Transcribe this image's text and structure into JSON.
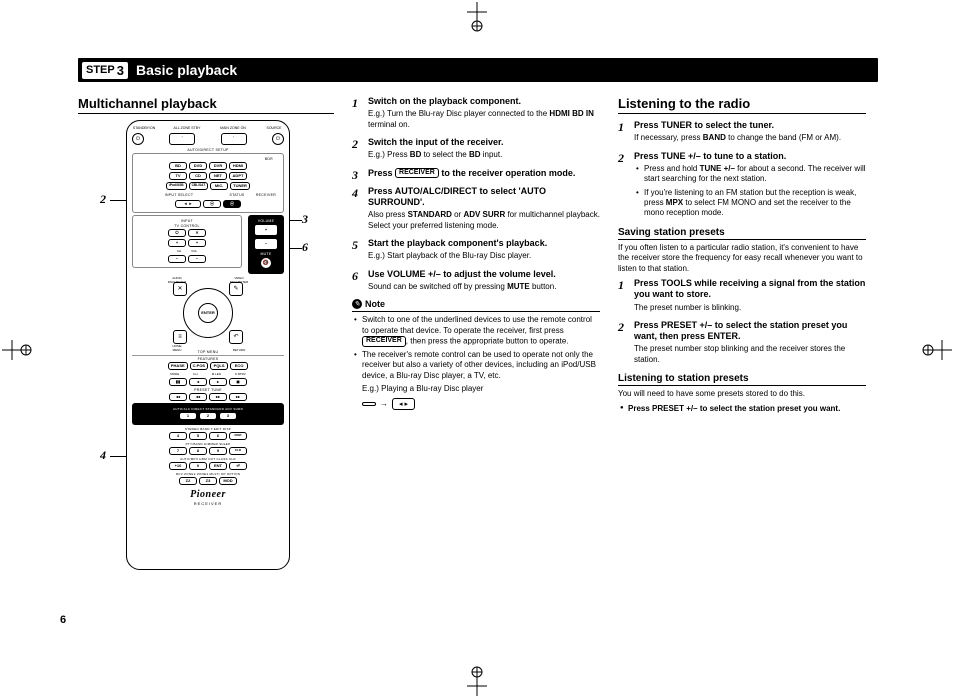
{
  "page_number": "6",
  "banner": {
    "step_word": "STEP",
    "step_num": "3",
    "title": "Basic playback"
  },
  "left": {
    "heading": "Multichannel playback",
    "callouts": {
      "c2": "2",
      "c3": "3",
      "c4": "4",
      "c6": "6"
    },
    "remote": {
      "top_labels": {
        "l1": "STANDBY/ON",
        "l2": "ALL ZONE STBY",
        "l3": "MAIN ZONE ON",
        "l4": "SOURCE"
      },
      "power_left": "⏻",
      "power_right": "⏻",
      "setup": "AUTO/DIRECT  SETUP",
      "input_grid": [
        [
          "BD",
          "DVD",
          "DVR",
          "HDMI"
        ],
        [
          "TV",
          "CD",
          "NET",
          "ADPT"
        ],
        [
          "iPod/USB",
          "CBL/SAT",
          "MIC.",
          "TUNER"
        ]
      ],
      "bdr": "BDR",
      "input_select": "INPUT SELECT",
      "status": "STATUS",
      "receiver": "RECEIVER",
      "left_arrows": "◄ ►",
      "tv_ctrl": "TV CONTROL",
      "input": "INPUT",
      "volume_lbl": "VOLUME",
      "tv_buttons": [
        "⏻",
        "✕",
        "CH",
        "VOL",
        "+",
        "−",
        "+",
        "−"
      ],
      "vol": "VOLUME",
      "vol_plus": "+",
      "vol_minus": "−",
      "mute": "MUTE",
      "mute_icon": "🔇",
      "audio_param": "AUDIO\nPARAMETER",
      "video_param": "VIDEO\nPARAMETER",
      "enter": "ENTER",
      "home": "HOME\nMENU",
      "return": "RETURN",
      "top_menu": "TOP MENU",
      "nav_x": "✕",
      "nav_pen": "✎",
      "nav_list": "≡",
      "nav_back": "↶",
      "features": "FEATURES",
      "feat_row": [
        "PHASE",
        "C.POS",
        "PQLS",
        "ECO"
      ],
      "feat_sub": [
        "MODE",
        "F.H",
        "M.LEN",
        "S.RTRV"
      ],
      "transport1": [
        "▮▮",
        "◂",
        "▸",
        "◼"
      ],
      "preset_tune": "PRESET        TUNE",
      "transport2": [
        "◂◂",
        "◂◂",
        "▸▸",
        "▸▸"
      ],
      "alc_row": "AUTO/ALC   DIRECT STANDARD ADV SURR",
      "num_row1": [
        "1",
        "2",
        "3"
      ],
      "menu_btn": "MENU",
      "band_row": "STEREO  BAND   T.EDIT   DISP",
      "num_row2": [
        "4",
        "5",
        "6"
      ],
      "disp_btn": "DISP",
      "ptyband": "PTY/BAND DIMMER SLEEP",
      "num_row3": [
        "7",
        "8",
        "9"
      ],
      "clr_btn": "CLR",
      "autodisp": "AUTO/MPX   HDM OUT   CLASS   CLR",
      "num_row4": [
        "+10",
        "0",
        "ENT"
      ],
      "enter_btn": "⏎",
      "color_row": "RCV  ZONE2  ZONE3  MULTI OP   OPTION",
      "zone_row": [
        "Z2",
        "Z3",
        "MOD"
      ],
      "logo": "Pioneer",
      "sublogo": "RECEIVER"
    }
  },
  "mid": {
    "steps": [
      {
        "t": "Switch on the playback component.",
        "b": "E.g.) Turn the Blu-ray Disc player connected to the <b>HDMI BD IN</b> terminal on."
      },
      {
        "t": "Switch the input of the receiver.",
        "b": "E.g.) Press <b>BD</b> to select the <b>BD</b> input."
      },
      {
        "t": "Press <span class='pill'>RECEIVER</span> to the receiver operation mode.",
        "b": ""
      },
      {
        "t": "Press AUTO/ALC/DIRECT to select 'AUTO SURROUND'.",
        "b": "Also press <b>STANDARD</b> or <b>ADV SURR</b> for multichannel playback. Select your preferred listening mode."
      },
      {
        "t": "Start the playback component's playback.",
        "b": "E.g.) Start playback of the Blu-ray Disc player."
      },
      {
        "t": "Use VOLUME +/– to adjust the volume level.",
        "b": "Sound can be switched off by pressing <b>MUTE</b> button."
      }
    ],
    "note_label": "Note",
    "notes": [
      "Switch to one of the underlined devices to use the remote control to operate that device. To operate the receiver, first press <span class='pill'>RECEIVER</span>, then press the appropriate button to operate.",
      "The receiver's remote control can be used to operate not only the receiver but also a variety of other devices, including an iPod/USB device, a Blu-ray Disc player, a TV, etc."
    ],
    "eg_line": "E.g.) Playing a Blu-ray Disc player",
    "eg_btn": " ",
    "eg_arrow": "→",
    "eg_play": "◂  ▸"
  },
  "right": {
    "heading": "Listening to the radio",
    "steps": [
      {
        "t": "Press TUNER to select the tuner.",
        "b": "If necessary, press <b>BAND</b> to change the band (FM or AM)."
      },
      {
        "t": "Press TUNE +/– to tune to a station.",
        "bullets": [
          "Press and hold <b>TUNE +/–</b> for about a second. The receiver will start searching for the next station.",
          "If you're listening to an FM station but the reception is weak, press <b>MPX</b> to select FM MONO and set the receiver to the mono reception mode."
        ]
      }
    ],
    "sub1": {
      "h": "Saving station presets",
      "intro": "If you often listen to a particular radio station, it's convenient to have the receiver store the frequency for easy recall whenever you want to listen to that station.",
      "steps": [
        {
          "t": "Press TOOLS while receiving a signal from the station you want to store.",
          "b": "The preset number is blinking."
        },
        {
          "t": "Press PRESET +/– to select the station preset you want, then press ENTER.",
          "b": "The preset number stop blinking and the receiver stores the station."
        }
      ]
    },
    "sub2": {
      "h": "Listening to station presets",
      "intro": "You will need to have some presets stored to do this.",
      "bullet": "<b>Press PRESET +/– to select the station preset you want.</b>"
    }
  }
}
